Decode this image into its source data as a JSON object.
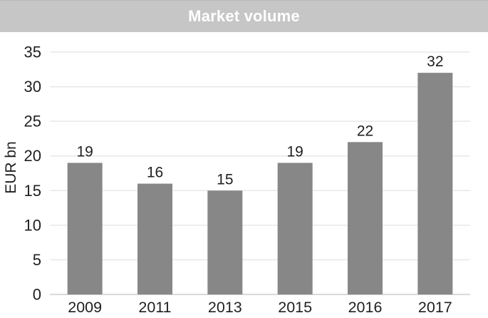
{
  "colors": {
    "title_bg": "#c6c6c6",
    "title_text": "#ffffff",
    "bar": "#878787",
    "gridline": "#e8e8e8",
    "axis_line": "#d9d9d9",
    "text": "#1f1f1f"
  },
  "chart_data": {
    "type": "bar",
    "title": "Market volume",
    "categories": [
      "2009",
      "2011",
      "2013",
      "2015",
      "2016",
      "2017"
    ],
    "values": [
      19,
      16,
      15,
      19,
      22,
      32
    ],
    "data_labels": [
      "19",
      "16",
      "15",
      "19",
      "22",
      "32"
    ],
    "xlabel": "",
    "ylabel": "EUR bn",
    "ylim": [
      0,
      35
    ],
    "yticks": [
      0,
      5,
      10,
      15,
      20,
      25,
      30,
      35
    ],
    "grid": true,
    "legend": false
  }
}
